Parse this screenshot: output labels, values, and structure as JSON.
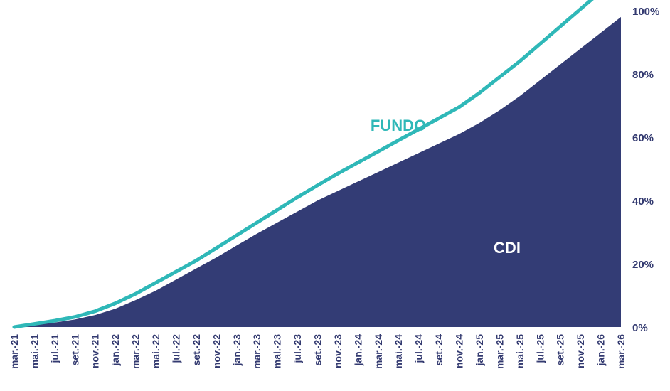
{
  "chart_data": {
    "type": "area",
    "x": [
      "mar.-21",
      "mai.-21",
      "jul.-21",
      "set.-21",
      "nov.-21",
      "jan.-22",
      "mar.-22",
      "mai.-22",
      "jul.-22",
      "set.-22",
      "nov.-22",
      "jan.-23",
      "mar.-23",
      "mai.-23",
      "jul.-23",
      "set.-23",
      "nov.-23",
      "jan.-24",
      "mar.-24",
      "mai.-24",
      "jul.-24",
      "set.-24",
      "nov.-24",
      "jan.-25",
      "mar.-25",
      "mai.-25",
      "jul.-25",
      "set.-25",
      "nov.-25",
      "jan.-26",
      "mar.-26"
    ],
    "series": [
      {
        "name": "FUNDO",
        "kind": "line",
        "color": "#2fb8b8",
        "values": [
          0,
          1,
          2,
          3.2,
          5,
          7.5,
          10.5,
          14,
          17.5,
          21,
          25,
          29,
          33,
          37,
          41,
          44.8,
          48.5,
          52,
          55.5,
          59,
          62.5,
          66,
          69.5,
          74,
          79,
          84,
          89.5,
          95,
          100.5,
          106,
          111.5
        ]
      },
      {
        "name": "CDI",
        "kind": "area",
        "color": "#333c75",
        "values": [
          0,
          0.7,
          1.4,
          2.4,
          3.8,
          5.8,
          8.5,
          11.5,
          15,
          18.5,
          22,
          25.8,
          29.5,
          33,
          36.5,
          40,
          43,
          46,
          49,
          52,
          55,
          58,
          61,
          64.5,
          68.5,
          73,
          78,
          83,
          88,
          93,
          98
        ]
      }
    ],
    "ylim": [
      0,
      100
    ],
    "yticks": [
      "0%",
      "20%",
      "40%",
      "60%",
      "80%",
      "100%"
    ],
    "ytick_values": [
      0,
      20,
      40,
      60,
      80,
      100
    ],
    "grid": false,
    "labels": [
      "FUNDO",
      "CDI"
    ]
  }
}
